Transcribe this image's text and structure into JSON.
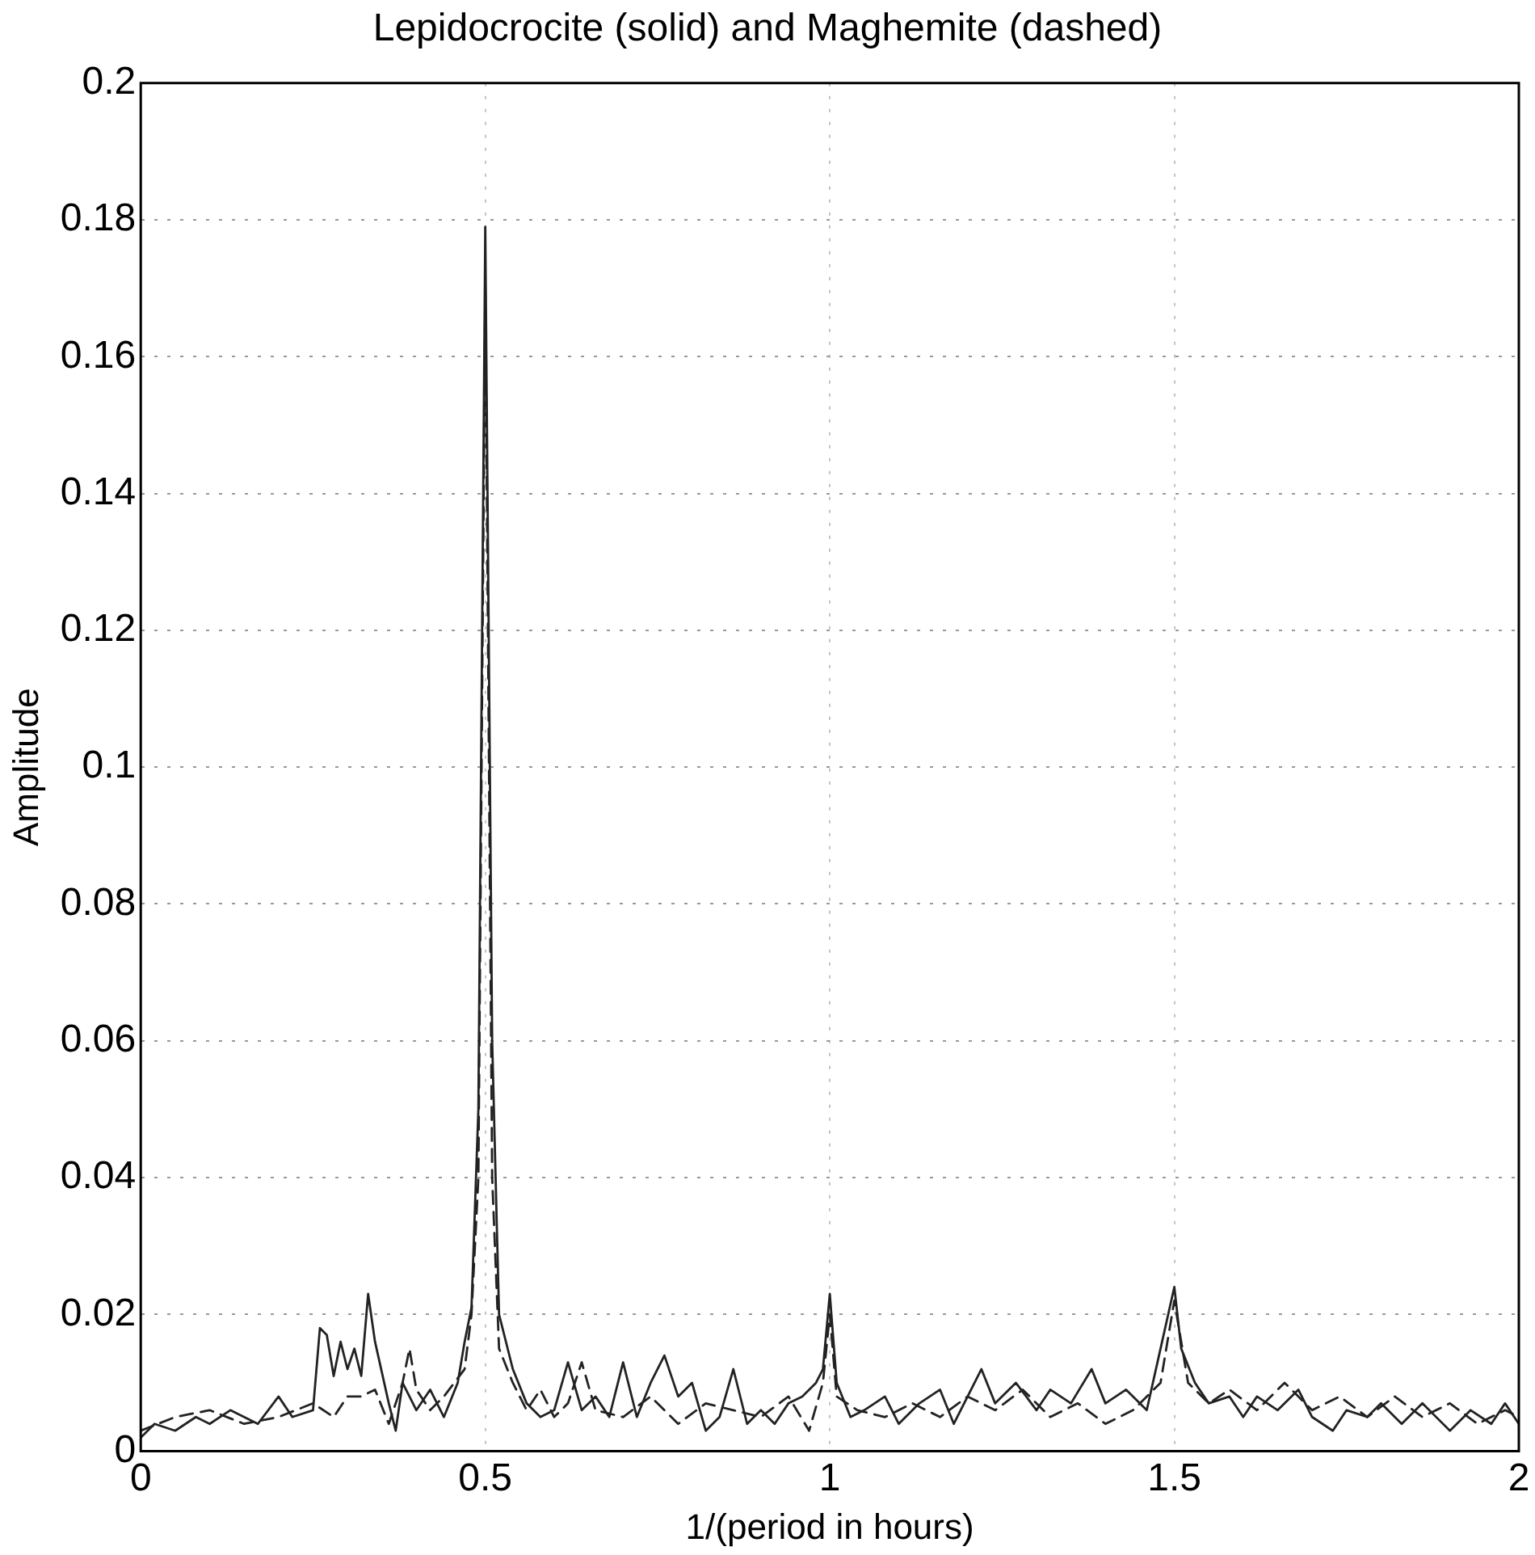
{
  "chart_data": {
    "type": "line",
    "title": "Lepidocrocite (solid) and Maghemite (dashed)",
    "xlabel": "1/(period in hours)",
    "ylabel": "Amplitude",
    "xlim": [
      0,
      2
    ],
    "xticks": [
      0,
      0.5,
      1,
      1.5,
      2
    ],
    "ylim": [
      0,
      0.2
    ],
    "yticks": [
      0,
      0.02,
      0.04,
      0.06,
      0.08,
      0.1,
      0.12,
      0.14,
      0.16,
      0.18,
      0.2
    ],
    "grid": true,
    "marker": "none",
    "series": [
      {
        "color": "#222222",
        "line_style": "solid",
        "x": [
          0,
          0.02,
          0.05,
          0.08,
          0.1,
          0.13,
          0.15,
          0.17,
          0.2,
          0.22,
          0.25,
          0.26,
          0.27,
          0.28,
          0.29,
          0.3,
          0.31,
          0.32,
          0.33,
          0.34,
          0.36,
          0.37,
          0.38,
          0.4,
          0.42,
          0.44,
          0.46,
          0.47,
          0.48,
          0.49,
          0.5,
          0.51,
          0.52,
          0.54,
          0.56,
          0.58,
          0.6,
          0.62,
          0.64,
          0.66,
          0.68,
          0.7,
          0.72,
          0.74,
          0.76,
          0.78,
          0.8,
          0.82,
          0.84,
          0.86,
          0.88,
          0.9,
          0.92,
          0.94,
          0.96,
          0.98,
          0.99,
          1.0,
          1.01,
          1.03,
          1.05,
          1.08,
          1.1,
          1.13,
          1.16,
          1.18,
          1.2,
          1.22,
          1.24,
          1.27,
          1.3,
          1.32,
          1.35,
          1.38,
          1.4,
          1.43,
          1.46,
          1.48,
          1.5,
          1.51,
          1.53,
          1.55,
          1.58,
          1.6,
          1.62,
          1.65,
          1.68,
          1.7,
          1.73,
          1.75,
          1.78,
          1.8,
          1.83,
          1.86,
          1.9,
          1.93,
          1.96,
          1.98,
          2.0
        ],
        "values": [
          0.002,
          0.004,
          0.003,
          0.005,
          0.004,
          0.006,
          0.005,
          0.004,
          0.008,
          0.005,
          0.006,
          0.018,
          0.017,
          0.011,
          0.016,
          0.012,
          0.015,
          0.011,
          0.023,
          0.016,
          0.007,
          0.003,
          0.01,
          0.006,
          0.009,
          0.005,
          0.01,
          0.016,
          0.021,
          0.05,
          0.179,
          0.06,
          0.02,
          0.012,
          0.007,
          0.005,
          0.006,
          0.013,
          0.006,
          0.008,
          0.005,
          0.013,
          0.005,
          0.01,
          0.014,
          0.008,
          0.01,
          0.003,
          0.005,
          0.012,
          0.004,
          0.006,
          0.004,
          0.007,
          0.008,
          0.01,
          0.012,
          0.023,
          0.01,
          0.005,
          0.006,
          0.008,
          0.004,
          0.007,
          0.009,
          0.004,
          0.008,
          0.012,
          0.007,
          0.01,
          0.006,
          0.009,
          0.007,
          0.012,
          0.007,
          0.009,
          0.006,
          0.015,
          0.024,
          0.015,
          0.01,
          0.007,
          0.008,
          0.005,
          0.008,
          0.006,
          0.009,
          0.005,
          0.003,
          0.006,
          0.005,
          0.007,
          0.004,
          0.007,
          0.003,
          0.006,
          0.004,
          0.007,
          0.004
        ]
      },
      {
        "color": "#222222",
        "line_style": "dashed",
        "x": [
          0,
          0.05,
          0.1,
          0.15,
          0.2,
          0.25,
          0.28,
          0.3,
          0.32,
          0.34,
          0.36,
          0.38,
          0.39,
          0.4,
          0.42,
          0.44,
          0.47,
          0.48,
          0.49,
          0.5,
          0.51,
          0.52,
          0.54,
          0.56,
          0.58,
          0.6,
          0.62,
          0.64,
          0.66,
          0.7,
          0.74,
          0.78,
          0.82,
          0.86,
          0.9,
          0.94,
          0.97,
          0.99,
          1.0,
          1.01,
          1.04,
          1.08,
          1.12,
          1.16,
          1.2,
          1.24,
          1.28,
          1.32,
          1.36,
          1.4,
          1.44,
          1.48,
          1.5,
          1.52,
          1.55,
          1.58,
          1.62,
          1.66,
          1.7,
          1.74,
          1.78,
          1.82,
          1.86,
          1.9,
          1.94,
          1.98,
          2.0
        ],
        "values": [
          0.003,
          0.005,
          0.006,
          0.004,
          0.005,
          0.007,
          0.005,
          0.008,
          0.008,
          0.009,
          0.004,
          0.01,
          0.015,
          0.009,
          0.006,
          0.008,
          0.012,
          0.02,
          0.04,
          0.17,
          0.04,
          0.015,
          0.01,
          0.006,
          0.009,
          0.005,
          0.007,
          0.013,
          0.006,
          0.005,
          0.008,
          0.004,
          0.007,
          0.006,
          0.005,
          0.008,
          0.003,
          0.01,
          0.02,
          0.008,
          0.006,
          0.005,
          0.007,
          0.005,
          0.008,
          0.006,
          0.009,
          0.005,
          0.007,
          0.004,
          0.006,
          0.01,
          0.022,
          0.01,
          0.007,
          0.009,
          0.006,
          0.01,
          0.006,
          0.008,
          0.005,
          0.008,
          0.005,
          0.007,
          0.004,
          0.006,
          0.005
        ]
      }
    ]
  }
}
